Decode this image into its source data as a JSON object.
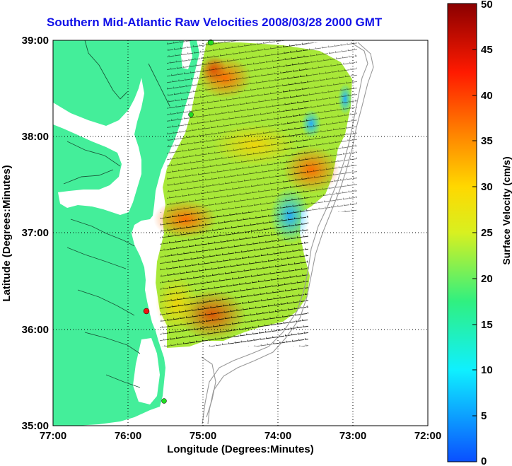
{
  "title": "Southern Mid-Atlantic Raw Velocities 2008/03/28 2000 GMT",
  "axes": {
    "xlabel": "Longitude (Degrees:Minutes)",
    "ylabel": "Latitude (Degrees:Minutes)",
    "x_ticks": [
      "77:00",
      "76:00",
      "75:00",
      "74:00",
      "73:00",
      "72:00"
    ],
    "y_ticks": [
      "39:00",
      "38:00",
      "37:00",
      "36:00",
      "35:00"
    ]
  },
  "colorbar": {
    "label": "Surface Velocity (cm/s)",
    "ticks": [
      "50",
      "45",
      "40",
      "35",
      "30",
      "25",
      "20",
      "15",
      "10",
      "5",
      "0"
    ],
    "min": 0,
    "max": 50
  },
  "colors": {
    "land": "#44ee9a",
    "water": "#ffffff",
    "title": "#1010e8",
    "station_green": "#22dd22",
    "station_red": "#ee1111"
  }
}
